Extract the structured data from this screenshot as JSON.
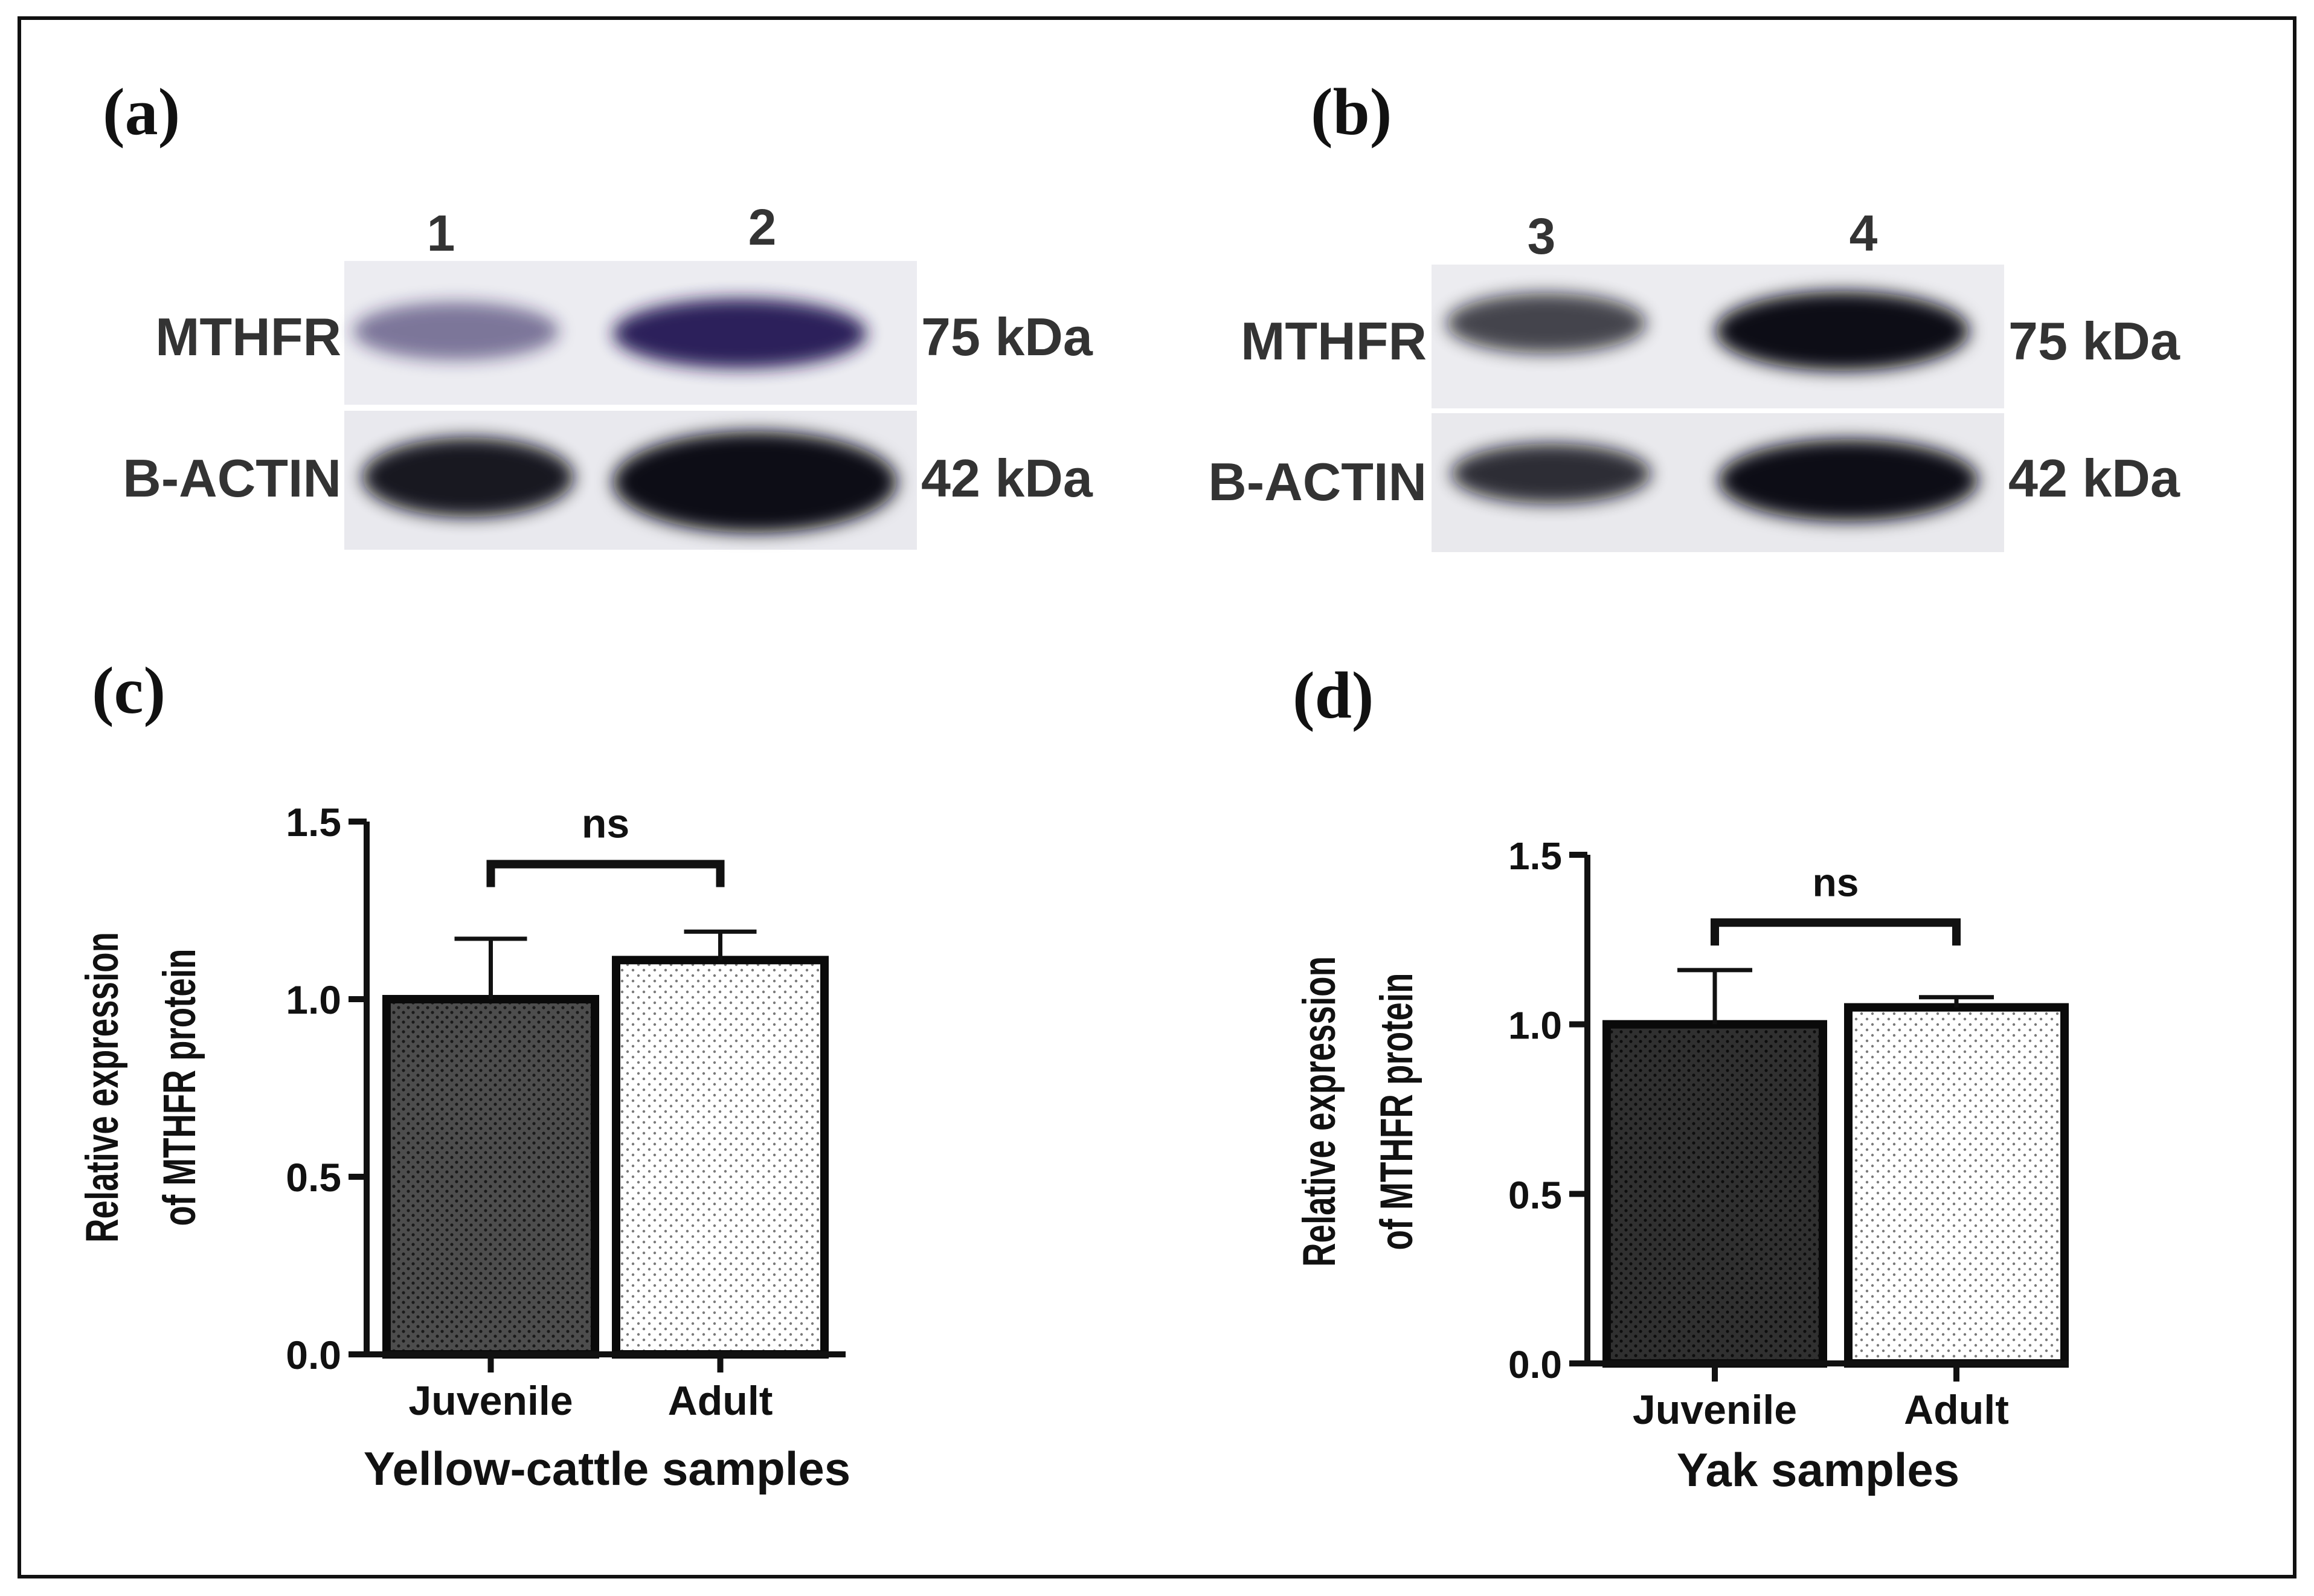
{
  "panels": {
    "a": {
      "label": "(a)",
      "lanes": [
        "1",
        "2"
      ],
      "rows": [
        {
          "protein": "MTHFR",
          "size": "75 kDa",
          "band_intensity": [
            0.55,
            0.95
          ],
          "band_color": "#241552"
        },
        {
          "protein": "B-ACTIN",
          "size": "42 kDa",
          "band_intensity": [
            0.95,
            1.0
          ],
          "band_color": "#0b0b18"
        }
      ]
    },
    "b": {
      "label": "(b)",
      "lanes": [
        "3",
        "4"
      ],
      "rows": [
        {
          "protein": "MTHFR",
          "size": "75 kDa",
          "band_intensity": [
            0.75,
            1.0
          ],
          "band_color": "#0b0b16"
        },
        {
          "protein": "B-ACTIN",
          "size": "42 kDa",
          "band_intensity": [
            0.85,
            1.0
          ],
          "band_color": "#0b0b16"
        }
      ]
    },
    "c": {
      "label": "(c)"
    },
    "d": {
      "label": "(d)"
    }
  },
  "chart_data": [
    {
      "panel": "c",
      "type": "bar",
      "categories": [
        "Juvenile",
        "Adult"
      ],
      "values": [
        1.0,
        1.11
      ],
      "error": [
        0.17,
        0.08
      ],
      "colors": [
        "#555555",
        "#ffffff"
      ],
      "xlabel": "Yellow-cattle samples",
      "ylabel": [
        "Relative expression",
        "of MTHFR protein"
      ],
      "ylim": [
        0,
        1.5
      ],
      "yticks": [
        "0.0",
        "0.5",
        "1.0",
        "1.5"
      ],
      "significance": "ns"
    },
    {
      "panel": "d",
      "type": "bar",
      "categories": [
        "Juvenile",
        "Adult"
      ],
      "values": [
        1.0,
        1.05
      ],
      "error": [
        0.16,
        0.03
      ],
      "colors": [
        "#333333",
        "#ffffff"
      ],
      "xlabel": "Yak samples",
      "ylabel": [
        "Relative expression",
        "of MTHFR protein"
      ],
      "ylim": [
        0,
        1.5
      ],
      "yticks": [
        "0.0",
        "0.5",
        "1.0",
        "1.5"
      ],
      "significance": "ns"
    }
  ]
}
